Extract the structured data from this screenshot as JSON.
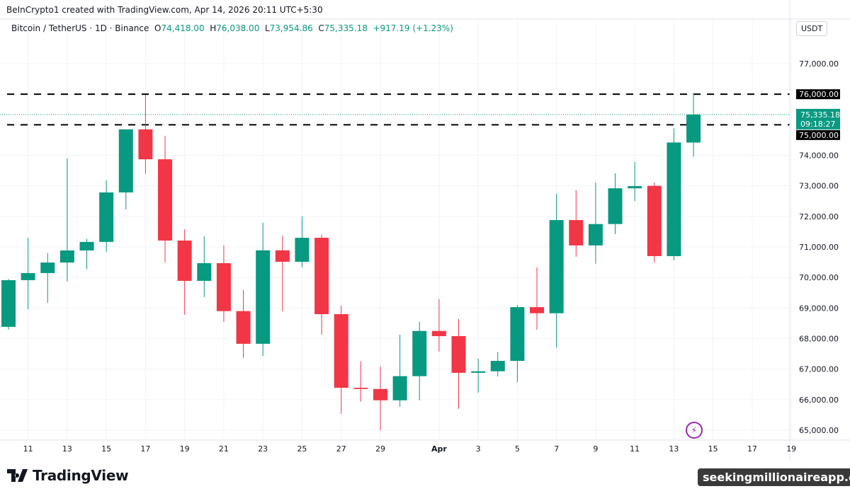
{
  "header": {
    "credit": "BeInCrypto1 created with TradingView.com, Apr 14, 2026 20:11 UTC+5:30",
    "symbol": "Bitcoin / TetherUS · 1D · Binance",
    "o_label": "O",
    "o": "74,418.00",
    "h_label": "H",
    "h": "76,038.00",
    "l_label": "L",
    "l": "73,954.86",
    "c_label": "C",
    "c": "75,335.18",
    "change": "+917.19 (+1.23%)"
  },
  "axis_unit": "USDT",
  "footer": {
    "logo_text": "TradingView",
    "watermark": "seekingmillionaireapp.com"
  },
  "colors": {
    "up": "#089981",
    "down": "#f23645",
    "level_line": "#000000",
    "last_price": "#089981"
  },
  "chart_data": {
    "type": "candlestick",
    "title": "",
    "y_ticks": [
      "65,000.00",
      "66,000.00",
      "67,000.00",
      "68,000.00",
      "69,000.00",
      "70,000.00",
      "71,000.00",
      "72,000.00",
      "73,000.00",
      "74,000.00",
      "75,000.00",
      "76,000.00",
      "77,000.00"
    ],
    "ylim": [
      64700,
      78400
    ],
    "x_ticks": [
      {
        "label": "11",
        "day": 1
      },
      {
        "label": "13",
        "day": 3
      },
      {
        "label": "15",
        "day": 5
      },
      {
        "label": "17",
        "day": 7
      },
      {
        "label": "19",
        "day": 9
      },
      {
        "label": "21",
        "day": 11
      },
      {
        "label": "23",
        "day": 13
      },
      {
        "label": "25",
        "day": 15
      },
      {
        "label": "27",
        "day": 17
      },
      {
        "label": "29",
        "day": 19
      },
      {
        "label": "Apr",
        "day": 22
      },
      {
        "label": "3",
        "day": 24
      },
      {
        "label": "5",
        "day": 26
      },
      {
        "label": "7",
        "day": 28
      },
      {
        "label": "9",
        "day": 30
      },
      {
        "label": "11",
        "day": 32
      },
      {
        "label": "13",
        "day": 34
      },
      {
        "label": "15",
        "day": 36
      },
      {
        "label": "17",
        "day": 38
      },
      {
        "label": "19",
        "day": 40
      }
    ],
    "horizontal_levels": [
      {
        "price": 76000,
        "label": "76,000.00"
      },
      {
        "price": 75000,
        "label": "75,000.00"
      }
    ],
    "last_price": {
      "price": 75335.18,
      "label": "75,335.18",
      "countdown": "09:18:27"
    },
    "candles": [
      {
        "date": "2026-03-10",
        "o": 68385,
        "h": 69950,
        "l": 68300,
        "c": 69913
      },
      {
        "date": "2026-03-11",
        "o": 69913,
        "h": 71300,
        "l": 68960,
        "c": 70145
      },
      {
        "date": "2026-03-12",
        "o": 70145,
        "h": 70800,
        "l": 69170,
        "c": 70490
      },
      {
        "date": "2026-03-13",
        "o": 70490,
        "h": 73900,
        "l": 69870,
        "c": 70885
      },
      {
        "date": "2026-03-14",
        "o": 70885,
        "h": 71260,
        "l": 70280,
        "c": 71165
      },
      {
        "date": "2026-03-15",
        "o": 71165,
        "h": 73180,
        "l": 70840,
        "c": 72785
      },
      {
        "date": "2026-03-16",
        "o": 72785,
        "h": 74850,
        "l": 72230,
        "c": 74850
      },
      {
        "date": "2026-03-17",
        "o": 74850,
        "h": 75980,
        "l": 73390,
        "c": 73870
      },
      {
        "date": "2026-03-18",
        "o": 73870,
        "h": 74640,
        "l": 70490,
        "c": 71210
      },
      {
        "date": "2026-03-19",
        "o": 71210,
        "h": 71580,
        "l": 68780,
        "c": 69890
      },
      {
        "date": "2026-03-20",
        "o": 69890,
        "h": 71350,
        "l": 69360,
        "c": 70470
      },
      {
        "date": "2026-03-21",
        "o": 70470,
        "h": 71050,
        "l": 68550,
        "c": 68900
      },
      {
        "date": "2026-03-22",
        "o": 68900,
        "h": 69590,
        "l": 67370,
        "c": 67830
      },
      {
        "date": "2026-03-23",
        "o": 67830,
        "h": 71790,
        "l": 67430,
        "c": 70890
      },
      {
        "date": "2026-03-24",
        "o": 70890,
        "h": 71370,
        "l": 68890,
        "c": 70515
      },
      {
        "date": "2026-03-25",
        "o": 70515,
        "h": 72000,
        "l": 70330,
        "c": 71300
      },
      {
        "date": "2026-03-26",
        "o": 71300,
        "h": 71400,
        "l": 68130,
        "c": 68800
      },
      {
        "date": "2026-03-27",
        "o": 68800,
        "h": 69080,
        "l": 65540,
        "c": 66390
      },
      {
        "date": "2026-03-28",
        "o": 66390,
        "h": 67260,
        "l": 65930,
        "c": 66350
      },
      {
        "date": "2026-03-29",
        "o": 66350,
        "h": 67090,
        "l": 65000,
        "c": 65980
      },
      {
        "date": "2026-03-30",
        "o": 65980,
        "h": 68130,
        "l": 65770,
        "c": 66770
      },
      {
        "date": "2026-03-31",
        "o": 66770,
        "h": 68550,
        "l": 65980,
        "c": 68250
      },
      {
        "date": "2026-04-01",
        "o": 68250,
        "h": 69290,
        "l": 67570,
        "c": 68080
      },
      {
        "date": "2026-04-02",
        "o": 68080,
        "h": 68640,
        "l": 65700,
        "c": 66880
      },
      {
        "date": "2026-04-03",
        "o": 66880,
        "h": 67340,
        "l": 66230,
        "c": 66930
      },
      {
        "date": "2026-04-04",
        "o": 66930,
        "h": 67550,
        "l": 66760,
        "c": 67270
      },
      {
        "date": "2026-04-05",
        "o": 67270,
        "h": 69100,
        "l": 66580,
        "c": 69030
      },
      {
        "date": "2026-04-06",
        "o": 69030,
        "h": 70330,
        "l": 68290,
        "c": 68830
      },
      {
        "date": "2026-04-07",
        "o": 68830,
        "h": 72740,
        "l": 67710,
        "c": 71880
      },
      {
        "date": "2026-04-08",
        "o": 71880,
        "h": 72860,
        "l": 70680,
        "c": 71050
      },
      {
        "date": "2026-04-09",
        "o": 71050,
        "h": 73110,
        "l": 70450,
        "c": 71750
      },
      {
        "date": "2026-04-10",
        "o": 71750,
        "h": 73410,
        "l": 71420,
        "c": 72920
      },
      {
        "date": "2026-04-11",
        "o": 72920,
        "h": 73780,
        "l": 72500,
        "c": 72990
      },
      {
        "date": "2026-04-12",
        "o": 73000,
        "h": 73110,
        "l": 70490,
        "c": 70700
      },
      {
        "date": "2026-04-13",
        "o": 70700,
        "h": 74880,
        "l": 70560,
        "c": 74420
      },
      {
        "date": "2026-04-14",
        "o": 74418,
        "h": 76038,
        "l": 73954.86,
        "c": 75335.18
      }
    ]
  }
}
